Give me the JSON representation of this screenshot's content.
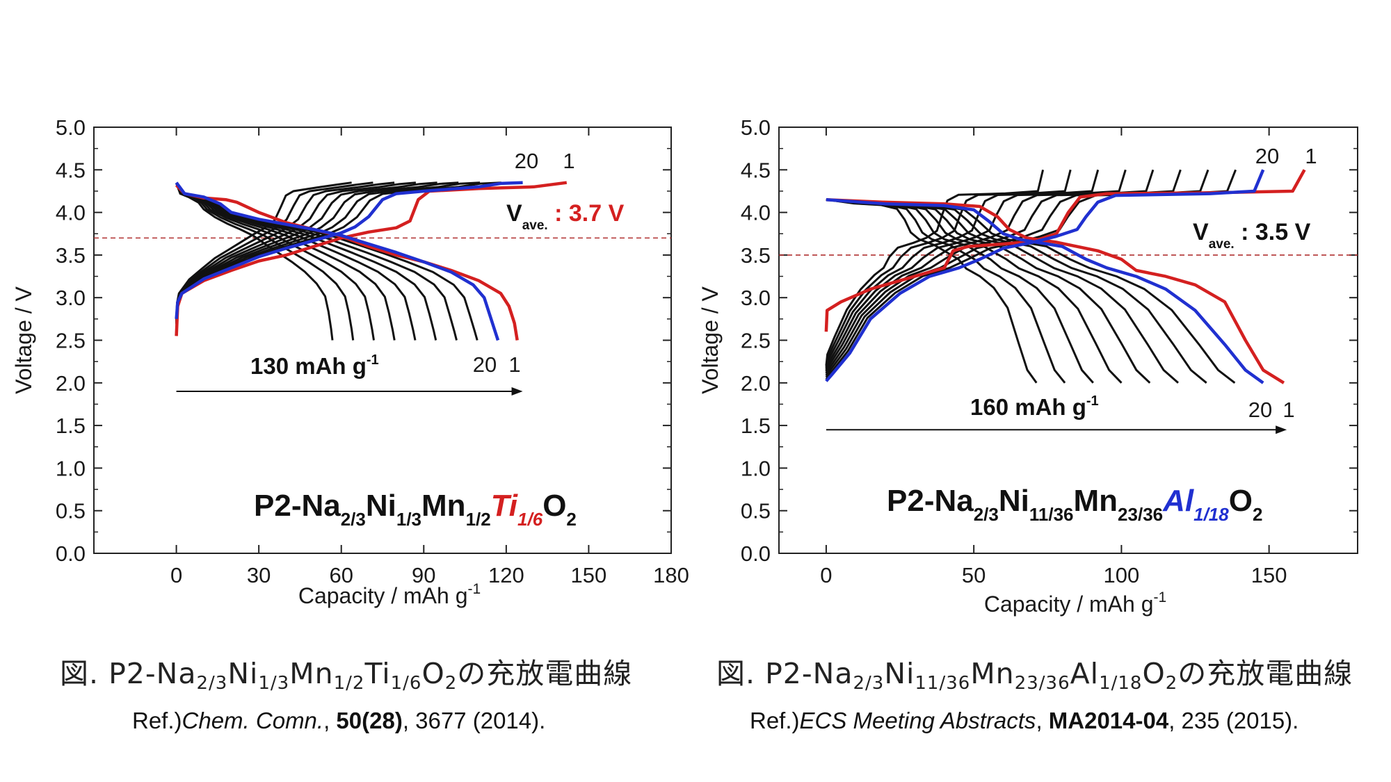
{
  "chart_data": [
    {
      "type": "line",
      "title": "P2-Na2/3Ni1/3Mn1/2Ti1/6O2",
      "formula_parts": {
        "a": "P2-Na",
        "s1": "2/3",
        "b": "Ni",
        "s2": "1/3",
        "c": "Mn",
        "s3": "1/2",
        "d": "Ti",
        "s4": "1/6",
        "e": "O",
        "s5": "2"
      },
      "xlabel": "Capacity / mAh g",
      "xlabel_sup": "-1",
      "ylabel": "Voltage / V",
      "xlim": [
        -30,
        180
      ],
      "ylim": [
        0,
        5
      ],
      "xticks": [
        "0",
        "30",
        "60",
        "90",
        "120",
        "150",
        "180"
      ],
      "yticks": [
        "0.0",
        "0.5",
        "1.0",
        "1.5",
        "2.0",
        "2.5",
        "3.0",
        "3.5",
        "4.0",
        "4.5",
        "5.0"
      ],
      "average_voltage_label": {
        "main": "V",
        "sub": "ave.",
        "value": ": 3.7 V",
        "v": 3.7
      },
      "capacity_annotation": {
        "text": "130 mAh g",
        "sup": "-1",
        "arrow_from": 0,
        "arrow_to": 126,
        "y": 1.9
      },
      "cycle_labels": {
        "top_blue": "20",
        "top_red": "1",
        "bottom_blue": "20",
        "bottom_red": "1"
      },
      "series": [
        {
          "name": "1",
          "color": "#d42020",
          "charge": [
            [
              0,
              2.55
            ],
            [
              0.5,
              2.9
            ],
            [
              2,
              3.05
            ],
            [
              10,
              3.2
            ],
            [
              20,
              3.32
            ],
            [
              30,
              3.43
            ],
            [
              40,
              3.5
            ],
            [
              50,
              3.6
            ],
            [
              60,
              3.7
            ],
            [
              70,
              3.77
            ],
            [
              80,
              3.82
            ],
            [
              85,
              3.9
            ],
            [
              88,
              4.15
            ],
            [
              92,
              4.25
            ],
            [
              110,
              4.28
            ],
            [
              130,
              4.3
            ],
            [
              142,
              4.35
            ]
          ],
          "discharge": [
            [
              0,
              4.32
            ],
            [
              3,
              4.22
            ],
            [
              10,
              4.17
            ],
            [
              18,
              4.15
            ],
            [
              22,
              4.12
            ],
            [
              30,
              4.0
            ],
            [
              40,
              3.88
            ],
            [
              50,
              3.8
            ],
            [
              60,
              3.72
            ],
            [
              70,
              3.6
            ],
            [
              80,
              3.5
            ],
            [
              90,
              3.42
            ],
            [
              100,
              3.32
            ],
            [
              110,
              3.2
            ],
            [
              118,
              3.05
            ],
            [
              121,
              2.9
            ],
            [
              123,
              2.7
            ],
            [
              124,
              2.5
            ]
          ]
        },
        {
          "name": "20",
          "color": "#2030d0",
          "charge": [
            [
              0,
              2.75
            ],
            [
              0.5,
              2.95
            ],
            [
              2,
              3.05
            ],
            [
              10,
              3.22
            ],
            [
              20,
              3.35
            ],
            [
              30,
              3.48
            ],
            [
              40,
              3.58
            ],
            [
              50,
              3.67
            ],
            [
              60,
              3.76
            ],
            [
              65,
              3.83
            ],
            [
              70,
              3.95
            ],
            [
              75,
              4.15
            ],
            [
              80,
              4.22
            ],
            [
              90,
              4.25
            ],
            [
              110,
              4.3
            ],
            [
              118,
              4.34
            ],
            [
              126,
              4.35
            ]
          ],
          "discharge": [
            [
              0,
              4.35
            ],
            [
              3,
              4.22
            ],
            [
              10,
              4.18
            ],
            [
              16,
              4.1
            ],
            [
              20,
              4.0
            ],
            [
              30,
              3.92
            ],
            [
              40,
              3.86
            ],
            [
              50,
              3.8
            ],
            [
              60,
              3.73
            ],
            [
              70,
              3.63
            ],
            [
              80,
              3.53
            ],
            [
              90,
              3.42
            ],
            [
              100,
              3.3
            ],
            [
              108,
              3.15
            ],
            [
              112,
              3.0
            ],
            [
              114,
              2.8
            ],
            [
              116,
              2.6
            ],
            [
              117,
              2.5
            ]
          ]
        }
      ]
    },
    {
      "type": "line",
      "title": "P2-Na2/3Ni11/36Mn23/36Al1/18O2",
      "formula_parts": {
        "a": "P2-Na",
        "s1": "2/3",
        "b": "Ni",
        "s2": "11/36",
        "c": "Mn",
        "s3": "23/36",
        "d": "Al",
        "s4": "1/18",
        "e": "O",
        "s5": "2"
      },
      "xlabel": "Capacity / mAh g",
      "xlabel_sup": "-1",
      "ylabel": "Voltage / V",
      "xlim": [
        -16,
        180
      ],
      "ylim": [
        0,
        5
      ],
      "xticks": [
        "0",
        "50",
        "100",
        "150"
      ],
      "yticks": [
        "0.0",
        "0.5",
        "1.0",
        "1.5",
        "2.0",
        "2.5",
        "3.0",
        "3.5",
        "4.0",
        "4.5",
        "5.0"
      ],
      "average_voltage_label": {
        "main": "V",
        "sub": "ave.",
        "value": ": 3.5 V",
        "v": 3.5
      },
      "capacity_annotation": {
        "text": "160 mAh g",
        "sup": "-1",
        "arrow_from": 0,
        "arrow_to": 156,
        "y": 1.45
      },
      "cycle_labels": {
        "top_blue": "20",
        "top_red": "1",
        "bottom_blue": "20",
        "bottom_red": "1"
      },
      "series": [
        {
          "name": "1",
          "color": "#d42020",
          "charge": [
            [
              0,
              2.6
            ],
            [
              0.3,
              2.85
            ],
            [
              5,
              2.95
            ],
            [
              15,
              3.1
            ],
            [
              25,
              3.2
            ],
            [
              35,
              3.3
            ],
            [
              40,
              3.35
            ],
            [
              43,
              3.55
            ],
            [
              48,
              3.6
            ],
            [
              60,
              3.63
            ],
            [
              70,
              3.66
            ],
            [
              78,
              3.75
            ],
            [
              82,
              4.0
            ],
            [
              86,
              4.18
            ],
            [
              95,
              4.22
            ],
            [
              130,
              4.23
            ],
            [
              158,
              4.25
            ],
            [
              162,
              4.5
            ]
          ],
          "discharge": [
            [
              0,
              4.15
            ],
            [
              20,
              4.12
            ],
            [
              40,
              4.1
            ],
            [
              52,
              4.07
            ],
            [
              58,
              3.95
            ],
            [
              62,
              3.8
            ],
            [
              68,
              3.7
            ],
            [
              78,
              3.65
            ],
            [
              92,
              3.55
            ],
            [
              100,
              3.45
            ],
            [
              105,
              3.32
            ],
            [
              115,
              3.25
            ],
            [
              125,
              3.15
            ],
            [
              135,
              2.95
            ],
            [
              142,
              2.5
            ],
            [
              148,
              2.15
            ],
            [
              155,
              2.0
            ]
          ]
        },
        {
          "name": "20",
          "color": "#2030d0",
          "charge": [
            [
              0,
              2.02
            ],
            [
              2,
              2.1
            ],
            [
              8,
              2.35
            ],
            [
              15,
              2.75
            ],
            [
              25,
              3.05
            ],
            [
              35,
              3.25
            ],
            [
              45,
              3.35
            ],
            [
              52,
              3.45
            ],
            [
              60,
              3.58
            ],
            [
              70,
              3.65
            ],
            [
              78,
              3.72
            ],
            [
              85,
              3.8
            ],
            [
              88,
              3.95
            ],
            [
              92,
              4.12
            ],
            [
              98,
              4.2
            ],
            [
              130,
              4.22
            ],
            [
              145,
              4.25
            ],
            [
              148,
              4.5
            ]
          ],
          "discharge": [
            [
              0,
              4.15
            ],
            [
              20,
              4.1
            ],
            [
              40,
              4.08
            ],
            [
              50,
              4.03
            ],
            [
              55,
              3.9
            ],
            [
              60,
              3.75
            ],
            [
              66,
              3.68
            ],
            [
              80,
              3.6
            ],
            [
              88,
              3.45
            ],
            [
              95,
              3.35
            ],
            [
              105,
              3.25
            ],
            [
              115,
              3.1
            ],
            [
              125,
              2.85
            ],
            [
              135,
              2.45
            ],
            [
              142,
              2.15
            ],
            [
              148,
              2.0
            ]
          ]
        }
      ]
    }
  ],
  "captions": [
    {
      "prefix": "図. P2-Na",
      "s1": "2/3",
      "b": "Ni",
      "s2": "1/3",
      "c": "Mn",
      "s3": "1/2",
      "d": "Ti",
      "s4": "1/6",
      "e": "O",
      "s5": "2",
      "suffix": "の充放電曲線"
    },
    {
      "prefix": "図. P2-Na",
      "s1": "2/3",
      "b": "Ni",
      "s2": "11/36",
      "c": "Mn",
      "s3": "23/36",
      "d": "Al",
      "s4": "1/18",
      "e": "O",
      "s5": "2",
      "suffix": "の充放電曲線"
    }
  ],
  "refs": [
    {
      "pre": "Ref.)",
      "journal": "Chem. Comn.",
      "sep1": ", ",
      "vol": "50(28)",
      "rest": ", 3677 (2014)."
    },
    {
      "pre": "Ref.)",
      "journal": "ECS Meeting Abstracts",
      "sep1": ", ",
      "vol": "MA2014-04",
      "rest": ", 235 (2015)."
    }
  ],
  "colors": {
    "red": "#d42020",
    "blue": "#2030d0",
    "black": "#111111",
    "dashed": "#b03030"
  }
}
